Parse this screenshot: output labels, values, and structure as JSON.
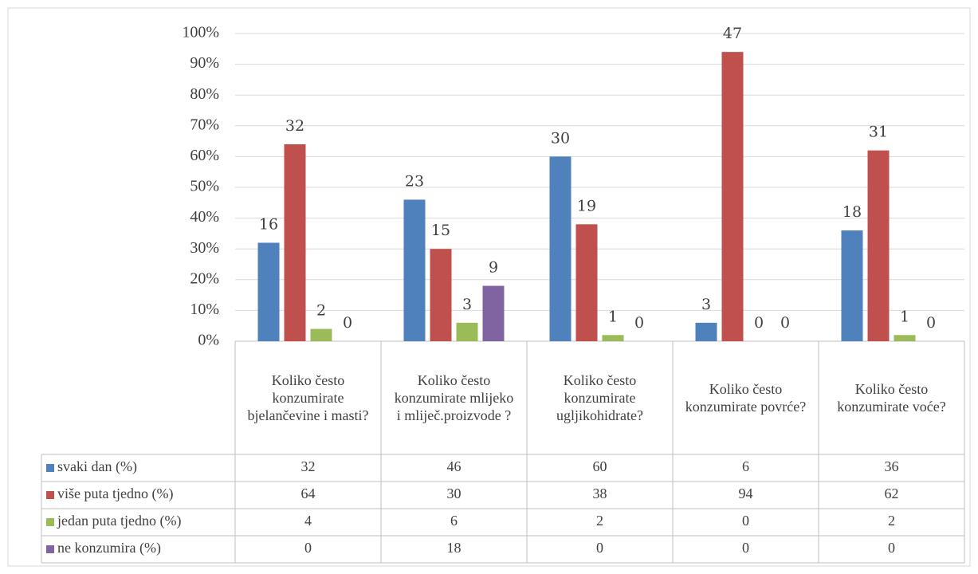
{
  "chart_data": {
    "type": "bar",
    "categories": [
      "Koliko često konzumirate bjelančevine i masti?",
      "Koliko često konzumirate mlijeko i mliječ.proizvode ?",
      "Koliko često konzumirate ugljikohidrate?",
      "Koliko često konzumirate povrće?",
      "Koliko često konzumirate voće?"
    ],
    "series": [
      {
        "name": "svaki dan (%)",
        "color": "#4f81bd",
        "values": [
          32,
          46,
          60,
          6,
          36
        ],
        "counts": [
          16,
          23,
          30,
          3,
          18
        ]
      },
      {
        "name": "više puta tjedno (%)",
        "color": "#c0504d",
        "values": [
          64,
          30,
          38,
          94,
          62
        ],
        "counts": [
          32,
          15,
          19,
          47,
          31
        ]
      },
      {
        "name": "jedan puta tjedno (%)",
        "color": "#9bbb59",
        "values": [
          4,
          6,
          2,
          0,
          2
        ],
        "counts": [
          2,
          3,
          1,
          0,
          1
        ]
      },
      {
        "name": "ne konzumira (%)",
        "color": "#8064a2",
        "values": [
          0,
          18,
          0,
          0,
          0
        ],
        "counts": [
          0,
          9,
          0,
          0,
          0
        ]
      }
    ],
    "ylim": [
      0,
      100
    ],
    "yticks": [
      {
        "value": 0,
        "label": "0%"
      },
      {
        "value": 10,
        "label": "10%"
      },
      {
        "value": 20,
        "label": "20%"
      },
      {
        "value": 30,
        "label": "30%"
      },
      {
        "value": 40,
        "label": "40%"
      },
      {
        "value": 50,
        "label": "50%"
      },
      {
        "value": 60,
        "label": "60%"
      },
      {
        "value": 70,
        "label": "70%"
      },
      {
        "value": 80,
        "label": "80%"
      },
      {
        "value": 90,
        "label": "90%"
      },
      {
        "value": 100,
        "label": "100%"
      }
    ],
    "grid": true
  }
}
